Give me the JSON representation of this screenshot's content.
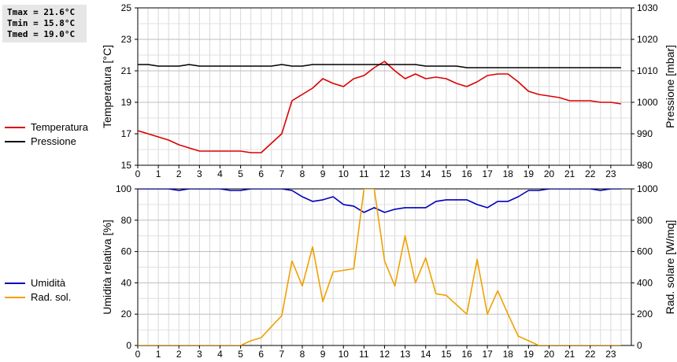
{
  "stats": {
    "tmax": "Tmax = 21.6°C",
    "tmin": "Tmin = 15.8°C",
    "tmed": "Tmed = 19.0°C"
  },
  "legend_top": [
    {
      "label": "Temperatura",
      "color": "#dd0000"
    },
    {
      "label": "Pressione",
      "color": "#000000"
    }
  ],
  "legend_bottom": [
    {
      "label": "Umidità",
      "color": "#0000bb"
    },
    {
      "label": "Rad. sol.",
      "color": "#f0a000"
    }
  ],
  "chart_data": [
    {
      "type": "line",
      "ylabel": "Temperatura [°C]",
      "y2label": "Pressione [mbar]",
      "xlim": [
        0,
        24
      ],
      "ylim": [
        15,
        25
      ],
      "y2lim": [
        980,
        1030
      ],
      "x_ticks": [
        "0",
        "1",
        "2",
        "3",
        "4",
        "5",
        "6",
        "7",
        "8",
        "9",
        "10",
        "11",
        "12",
        "13",
        "14",
        "15",
        "16",
        "17",
        "18",
        "19",
        "20",
        "21",
        "22",
        "23"
      ],
      "y_ticks": [
        "15",
        "17",
        "19",
        "21",
        "23",
        "25"
      ],
      "y2_ticks": [
        "980",
        "990",
        "1000",
        "1010",
        "1020",
        "1030"
      ],
      "grid": true,
      "series": [
        {
          "name": "Temperatura",
          "axis": "left",
          "color": "#dd0000",
          "x": [
            0,
            0.5,
            1,
            1.5,
            2,
            2.5,
            3,
            3.5,
            4,
            4.5,
            5,
            5.5,
            6,
            6.5,
            7,
            7.5,
            8,
            8.5,
            9,
            9.5,
            10,
            10.5,
            11,
            11.5,
            12,
            12.5,
            13,
            13.5,
            14,
            14.5,
            15,
            15.5,
            16,
            16.5,
            17,
            17.5,
            18,
            18.5,
            19,
            19.5,
            20,
            20.5,
            21,
            21.5,
            22,
            22.5,
            23,
            23.5
          ],
          "y": [
            17.2,
            17.0,
            16.8,
            16.6,
            16.3,
            16.1,
            15.9,
            15.9,
            15.9,
            15.9,
            15.9,
            15.8,
            15.8,
            16.4,
            17.0,
            19.1,
            19.5,
            19.9,
            20.5,
            20.2,
            20.0,
            20.5,
            20.7,
            21.2,
            21.6,
            21.0,
            20.5,
            20.8,
            20.5,
            20.6,
            20.5,
            20.2,
            20.0,
            20.3,
            20.7,
            20.8,
            20.8,
            20.3,
            19.7,
            19.5,
            19.4,
            19.3,
            19.1,
            19.1,
            19.1,
            19.0,
            19.0,
            18.9
          ]
        },
        {
          "name": "Pressione",
          "axis": "right",
          "color": "#000000",
          "x": [
            0,
            0.5,
            1,
            1.5,
            2,
            2.5,
            3,
            3.5,
            4,
            4.5,
            5,
            5.5,
            6,
            6.5,
            7,
            7.5,
            8,
            8.5,
            9,
            9.5,
            10,
            10.5,
            11,
            11.5,
            12,
            12.5,
            13,
            13.5,
            14,
            14.5,
            15,
            15.5,
            16,
            16.5,
            17,
            17.5,
            18,
            18.5,
            19,
            19.5,
            20,
            20.5,
            21,
            21.5,
            22,
            22.5,
            23,
            23.5
          ],
          "y": [
            1012.0,
            1012.0,
            1011.5,
            1011.5,
            1011.5,
            1012.0,
            1011.5,
            1011.5,
            1011.5,
            1011.5,
            1011.5,
            1011.5,
            1011.5,
            1011.5,
            1012.0,
            1011.5,
            1011.5,
            1012.0,
            1012.0,
            1012.0,
            1012.0,
            1012.0,
            1012.0,
            1012.0,
            1012.0,
            1012.0,
            1012.0,
            1012.0,
            1011.5,
            1011.5,
            1011.5,
            1011.5,
            1011.0,
            1011.0,
            1011.0,
            1011.0,
            1011.0,
            1011.0,
            1011.0,
            1011.0,
            1011.0,
            1011.0,
            1011.0,
            1011.0,
            1011.0,
            1011.0,
            1011.0,
            1011.0
          ]
        }
      ]
    },
    {
      "type": "line",
      "ylabel": "Umidità relativa [%]",
      "y2label": "Rad. solare [W/mq]",
      "xlim": [
        0,
        24
      ],
      "ylim": [
        0,
        100
      ],
      "y2lim": [
        0,
        1000
      ],
      "x_ticks": [
        "0",
        "1",
        "2",
        "3",
        "4",
        "5",
        "6",
        "7",
        "8",
        "9",
        "10",
        "11",
        "12",
        "13",
        "14",
        "15",
        "16",
        "17",
        "18",
        "19",
        "20",
        "21",
        "22",
        "23"
      ],
      "y_ticks": [
        "0",
        "20",
        "40",
        "60",
        "80",
        "100"
      ],
      "y2_ticks": [
        "0",
        "200",
        "400",
        "600",
        "800",
        "1000"
      ],
      "grid": true,
      "series": [
        {
          "name": "Umidità",
          "axis": "left",
          "color": "#0000bb",
          "x": [
            0,
            0.5,
            1,
            1.5,
            2,
            2.5,
            3,
            3.5,
            4,
            4.5,
            5,
            5.5,
            6,
            6.5,
            7,
            7.5,
            8,
            8.5,
            9,
            9.5,
            10,
            10.5,
            11,
            11.5,
            12,
            12.5,
            13,
            13.5,
            14,
            14.5,
            15,
            15.5,
            16,
            16.5,
            17,
            17.5,
            18,
            18.5,
            19,
            19.5,
            20,
            20.5,
            21,
            21.5,
            22,
            22.5,
            23,
            23.5
          ],
          "y": [
            100,
            100,
            100,
            100,
            99,
            100,
            100,
            100,
            100,
            99,
            99,
            100,
            100,
            100,
            100,
            99,
            95,
            92,
            93,
            95,
            90,
            89,
            85,
            88,
            85,
            87,
            88,
            88,
            88,
            92,
            93,
            93,
            93,
            90,
            88,
            92,
            92,
            95,
            99,
            99,
            100,
            100,
            100,
            100,
            100,
            99,
            100,
            100
          ]
        },
        {
          "name": "Rad. sol.",
          "axis": "right",
          "color": "#f0a000",
          "x": [
            0,
            0.5,
            1,
            1.5,
            2,
            2.5,
            3,
            3.5,
            4,
            4.5,
            5,
            5.5,
            6,
            6.5,
            7,
            7.5,
            8,
            8.5,
            9,
            9.5,
            10,
            10.5,
            11,
            11.5,
            12,
            12.5,
            13,
            13.5,
            14,
            14.5,
            15,
            15.5,
            16,
            16.5,
            17,
            17.5,
            18,
            18.5,
            19,
            19.5,
            20,
            20.5,
            21,
            21.5,
            22,
            22.5,
            23,
            23.5
          ],
          "y": [
            0,
            0,
            0,
            0,
            0,
            0,
            0,
            0,
            0,
            0,
            0,
            30,
            50,
            120,
            190,
            540,
            380,
            630,
            280,
            470,
            480,
            490,
            1000,
            1000,
            540,
            380,
            700,
            400,
            560,
            330,
            320,
            260,
            200,
            550,
            200,
            350,
            200,
            60,
            30,
            0,
            0,
            0,
            0,
            0,
            0,
            0,
            0,
            0
          ]
        }
      ]
    }
  ]
}
